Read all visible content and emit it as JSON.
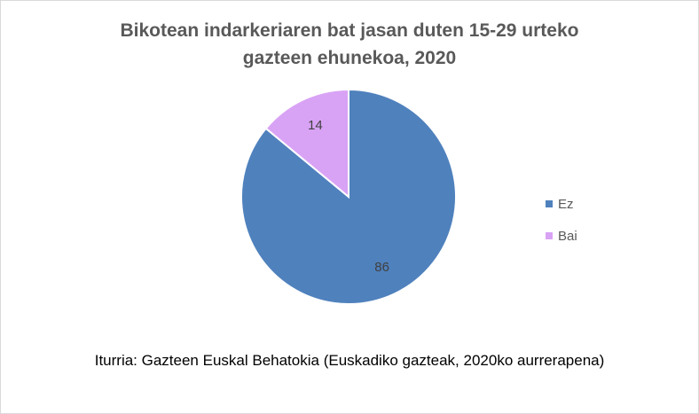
{
  "chart_data": {
    "type": "pie",
    "title_lines": [
      "Bikotean indarkeriaren bat jasan duten 15-29 urteko",
      "gazteen ehunekoa, 2020"
    ],
    "categories": [
      "Ez",
      "Bai"
    ],
    "values": [
      86,
      14
    ],
    "colors": [
      "#4F81BD",
      "#D9A3F5"
    ],
    "data_labels": [
      "86",
      "14"
    ],
    "legend": {
      "position": "right",
      "entries": [
        "Ez",
        "Bai"
      ]
    },
    "source": "Iturria: Gazteen Euskal Behatokia (Euskadiko gazteak, 2020ko aurrerapena)"
  }
}
